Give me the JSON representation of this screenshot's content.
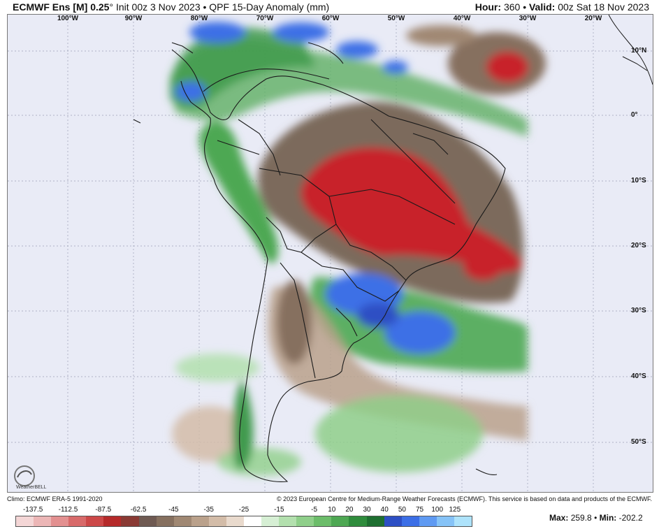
{
  "header": {
    "model": "ECMWF Ens [M] 0.25",
    "degree": "°",
    "init": "Init 00z 3 Nov 2023",
    "bullet": "•",
    "product": "QPF 15-Day Anomaly (mm)",
    "hour_label": "Hour:",
    "hour_value": "360",
    "valid_label": "Valid:",
    "valid_value": "00z Sat 18 Nov 2023"
  },
  "map": {
    "lon_labels": [
      "100°W",
      "90°W",
      "80°W",
      "70°W",
      "60°W",
      "50°W",
      "40°W",
      "30°W",
      "20°W"
    ],
    "lat_labels": [
      "10°N",
      "0°",
      "10°S",
      "20°S",
      "30°S",
      "40°S",
      "50°S"
    ],
    "logo_text": "WeatherBELL",
    "colors": {
      "ocean_background": "#e9ebf6",
      "dry_strong": "#c8202c",
      "dry_brown": "#7c6a5c",
      "wet_green": "#3f9a4e",
      "wet_blue": "#2a6fe8"
    }
  },
  "credits": {
    "climo": "Climo: ECMWF ERA-5 1991-2020",
    "copyright": "© 2023 European Centre for Medium-Range Weather Forecasts (ECMWF). This service is based on data and products of the ECMWF."
  },
  "colorbar": {
    "labels": [
      "-137.5",
      "-112.5",
      "-87.5",
      "-62.5",
      "-45",
      "-35",
      "-25",
      "-15",
      "-5",
      "10",
      "20",
      "30",
      "40",
      "50",
      "75",
      "100",
      "125"
    ],
    "colors": [
      "#f4d6d6",
      "#ecb6b6",
      "#e39090",
      "#d86a6a",
      "#cc4848",
      "#b52a2a",
      "#8a3a34",
      "#6f5a52",
      "#86705f",
      "#a08873",
      "#baa18b",
      "#d3bca8",
      "#e9dacd",
      "#ffffff",
      "#d6efd4",
      "#b3e0ae",
      "#8fcf8a",
      "#6cbd6a",
      "#4ea853",
      "#2f8c3c",
      "#1e6f30",
      "#2d4fc4",
      "#3c6fe6",
      "#5f9af2",
      "#86c3f7",
      "#aee3fb"
    ],
    "max_label": "Max:",
    "max_value": "259.8",
    "min_label": "Min:",
    "min_value": "-202.2"
  }
}
